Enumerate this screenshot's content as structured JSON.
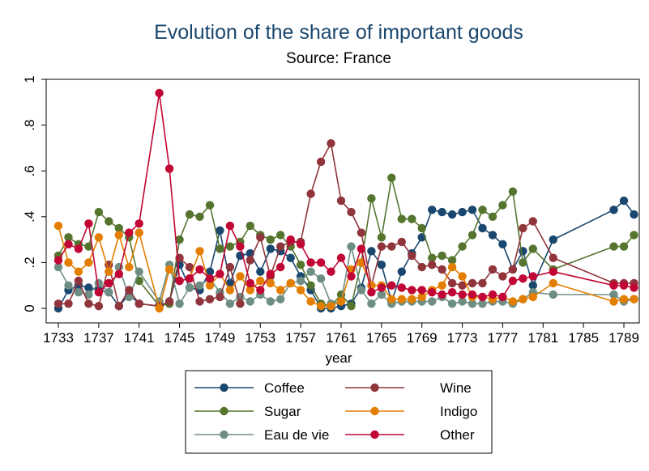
{
  "chart_data": {
    "type": "line",
    "title": "Evolution of the share of important goods",
    "subtitle": "Source: France",
    "xlabel": "year",
    "ylabel": "",
    "xlim": [
      1733,
      1789
    ],
    "ylim": [
      0,
      1
    ],
    "x_ticks": [
      "1733",
      "1737",
      "1741",
      "1745",
      "1749",
      "1753",
      "1757",
      "1761",
      "1765",
      "1769",
      "1773",
      "1777",
      "1781",
      "1785",
      "1789"
    ],
    "y_ticks": [
      "0",
      ".2",
      ".4",
      ".6",
      ".8",
      "1"
    ],
    "grid": false,
    "legend_position": "bottom",
    "series": [
      {
        "name": "Coffee",
        "color": "#1a476f",
        "x": [
          1733,
          1734,
          1735,
          1736,
          1737,
          1738,
          1739,
          1740,
          1741,
          1743,
          1744,
          1745,
          1746,
          1747,
          1748,
          1749,
          1750,
          1751,
          1752,
          1753,
          1754,
          1755,
          1756,
          1757,
          1758,
          1759,
          1760,
          1761,
          1762,
          1763,
          1764,
          1765,
          1766,
          1767,
          1768,
          1769,
          1770,
          1771,
          1772,
          1773,
          1774,
          1775,
          1776,
          1777,
          1778,
          1779,
          1780,
          1782,
          1788,
          1789,
          1790
        ],
        "y": [
          0.0,
          0.08,
          0.1,
          0.09,
          0.08,
          0.07,
          0.01,
          0.06,
          0.02,
          0.01,
          0.03,
          0.19,
          0.09,
          0.08,
          0.16,
          0.34,
          0.11,
          0.23,
          0.24,
          0.16,
          0.26,
          0.25,
          0.22,
          0.14,
          0.08,
          0.0,
          0.0,
          0.01,
          0.02,
          0.09,
          0.25,
          0.19,
          0.03,
          0.16,
          0.24,
          0.31,
          0.43,
          0.42,
          0.41,
          0.42,
          0.43,
          0.35,
          0.32,
          0.28,
          0.17,
          0.25,
          0.1,
          0.3,
          0.43,
          0.47,
          0.41
        ]
      },
      {
        "name": "Sugar",
        "color": "#55752f",
        "x": [
          1733,
          1734,
          1735,
          1736,
          1737,
          1738,
          1739,
          1740,
          1741,
          1743,
          1744,
          1745,
          1746,
          1747,
          1748,
          1749,
          1750,
          1751,
          1752,
          1753,
          1754,
          1755,
          1756,
          1757,
          1758,
          1759,
          1760,
          1761,
          1762,
          1763,
          1764,
          1765,
          1766,
          1767,
          1768,
          1769,
          1770,
          1771,
          1772,
          1773,
          1774,
          1775,
          1776,
          1777,
          1778,
          1779,
          1780,
          1782,
          1788,
          1789,
          1790
        ],
        "y": [
          0.23,
          0.31,
          0.28,
          0.27,
          0.42,
          0.38,
          0.35,
          0.31,
          0.12,
          0.01,
          0.02,
          0.3,
          0.41,
          0.4,
          0.45,
          0.26,
          0.27,
          0.29,
          0.36,
          0.32,
          0.3,
          0.32,
          0.27,
          0.19,
          0.1,
          0.02,
          0.01,
          0.06,
          0.01,
          0.2,
          0.48,
          0.31,
          0.57,
          0.39,
          0.39,
          0.35,
          0.22,
          0.23,
          0.21,
          0.27,
          0.32,
          0.43,
          0.4,
          0.45,
          0.51,
          0.2,
          0.26,
          0.17,
          0.27,
          0.27,
          0.32
        ]
      },
      {
        "name": "Eau de vie",
        "color": "#6e8e84",
        "x": [
          1733,
          1734,
          1735,
          1736,
          1737,
          1738,
          1739,
          1740,
          1741,
          1743,
          1744,
          1745,
          1746,
          1747,
          1748,
          1749,
          1750,
          1751,
          1752,
          1753,
          1754,
          1755,
          1756,
          1757,
          1758,
          1759,
          1760,
          1761,
          1762,
          1763,
          1764,
          1765,
          1766,
          1767,
          1768,
          1769,
          1770,
          1771,
          1772,
          1773,
          1774,
          1775,
          1776,
          1777,
          1778,
          1779,
          1780,
          1782,
          1788,
          1789,
          1790
        ],
        "y": [
          0.18,
          0.1,
          0.07,
          0.06,
          0.11,
          0.07,
          0.18,
          0.05,
          0.16,
          0.03,
          0.19,
          0.02,
          0.09,
          0.1,
          0.13,
          0.07,
          0.02,
          0.05,
          0.03,
          0.06,
          0.03,
          0.04,
          0.11,
          0.12,
          0.16,
          0.13,
          0.02,
          0.03,
          0.27,
          0.08,
          0.02,
          0.06,
          0.02,
          0.03,
          0.03,
          0.03,
          0.03,
          0.05,
          0.02,
          0.03,
          0.02,
          0.02,
          0.03,
          0.03,
          0.02,
          0.04,
          0.07,
          0.06,
          0.06,
          0.03,
          0.04
        ]
      },
      {
        "name": "Wine",
        "color": "#90353b",
        "x": [
          1733,
          1734,
          1735,
          1736,
          1737,
          1738,
          1739,
          1740,
          1741,
          1743,
          1744,
          1745,
          1746,
          1747,
          1748,
          1749,
          1750,
          1751,
          1752,
          1753,
          1754,
          1755,
          1756,
          1757,
          1758,
          1759,
          1760,
          1761,
          1762,
          1763,
          1764,
          1765,
          1766,
          1767,
          1768,
          1769,
          1770,
          1771,
          1772,
          1773,
          1774,
          1775,
          1776,
          1777,
          1778,
          1779,
          1780,
          1782,
          1788,
          1789,
          1790
        ],
        "y": [
          0.02,
          0.02,
          0.12,
          0.02,
          0.01,
          0.19,
          0.01,
          0.08,
          0.02,
          0.01,
          0.03,
          0.22,
          0.18,
          0.03,
          0.04,
          0.05,
          0.18,
          0.02,
          0.21,
          0.31,
          0.14,
          0.27,
          0.29,
          0.29,
          0.5,
          0.64,
          0.72,
          0.47,
          0.42,
          0.33,
          0.1,
          0.27,
          0.27,
          0.29,
          0.23,
          0.18,
          0.19,
          0.17,
          0.11,
          0.1,
          0.11,
          0.11,
          0.17,
          0.14,
          0.17,
          0.35,
          0.38,
          0.22,
          0.11,
          0.11,
          0.11
        ]
      },
      {
        "name": "Indigo",
        "color": "#e37e00",
        "x": [
          1733,
          1734,
          1735,
          1736,
          1737,
          1738,
          1739,
          1740,
          1741,
          1743,
          1744,
          1745,
          1746,
          1747,
          1748,
          1749,
          1750,
          1751,
          1752,
          1753,
          1754,
          1755,
          1756,
          1757,
          1758,
          1759,
          1760,
          1761,
          1762,
          1763,
          1764,
          1765,
          1766,
          1767,
          1768,
          1769,
          1770,
          1771,
          1772,
          1773,
          1774,
          1775,
          1776,
          1777,
          1778,
          1779,
          1780,
          1782,
          1788,
          1789,
          1790
        ],
        "y": [
          0.36,
          0.2,
          0.16,
          0.2,
          0.31,
          0.16,
          0.32,
          0.18,
          0.33,
          0.0,
          0.17,
          0.12,
          0.13,
          0.25,
          0.1,
          0.15,
          0.08,
          0.14,
          0.08,
          0.12,
          0.11,
          0.08,
          0.11,
          0.08,
          0.03,
          0.01,
          0.01,
          0.03,
          0.17,
          0.2,
          0.1,
          0.1,
          0.04,
          0.04,
          0.04,
          0.05,
          0.08,
          0.1,
          0.18,
          0.14,
          0.05,
          0.05,
          0.04,
          0.05,
          0.03,
          0.04,
          0.05,
          0.11,
          0.03,
          0.04,
          0.04
        ]
      },
      {
        "name": "Other",
        "color": "#c10534",
        "x": [
          1733,
          1734,
          1735,
          1736,
          1737,
          1738,
          1739,
          1740,
          1741,
          1743,
          1744,
          1745,
          1746,
          1747,
          1748,
          1749,
          1750,
          1751,
          1752,
          1753,
          1754,
          1755,
          1756,
          1757,
          1758,
          1759,
          1760,
          1761,
          1762,
          1763,
          1764,
          1765,
          1766,
          1767,
          1768,
          1769,
          1770,
          1771,
          1772,
          1773,
          1774,
          1775,
          1776,
          1777,
          1778,
          1779,
          1780,
          1782,
          1788,
          1789,
          1790
        ],
        "y": [
          0.21,
          0.28,
          0.26,
          0.37,
          0.07,
          0.11,
          0.15,
          0.33,
          0.37,
          0.94,
          0.61,
          0.12,
          0.13,
          0.17,
          0.13,
          0.15,
          0.36,
          0.27,
          0.11,
          0.08,
          0.15,
          0.18,
          0.3,
          0.28,
          0.2,
          0.2,
          0.16,
          0.22,
          0.14,
          0.26,
          0.07,
          0.09,
          0.1,
          0.09,
          0.08,
          0.08,
          0.07,
          0.06,
          0.07,
          0.06,
          0.06,
          0.05,
          0.06,
          0.05,
          0.12,
          0.13,
          0.14,
          0.16,
          0.1,
          0.1,
          0.09
        ]
      }
    ]
  }
}
